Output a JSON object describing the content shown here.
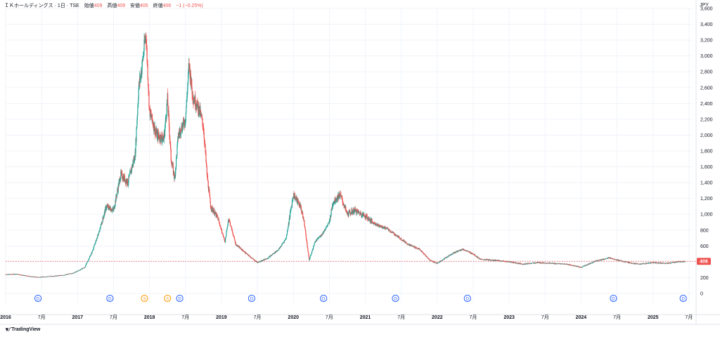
{
  "header": {
    "symbol": "ＩＫホールディングス",
    "interval": "1日",
    "exchange": "TSE",
    "open_label": "始値",
    "open": "409",
    "high_label": "高値",
    "high": "409",
    "low_label": "安値",
    "low": "405",
    "close_label": "終値",
    "close": "406",
    "change": "−1 (−0.25%)"
  },
  "currency": "JPY",
  "footer": {
    "brand": "TradingView",
    "icon": "tradingview-logo-icon"
  },
  "colors": {
    "up": "#26a69a",
    "down": "#ef5350",
    "price_line": "#ef5350",
    "marker_dividend": "#2962ff",
    "marker_split": "#ff9800",
    "grid": "#f0f3fa"
  },
  "chart_data": {
    "type": "candlestick",
    "ylim": [
      0,
      3600
    ],
    "y_ticks": [
      "0",
      "200",
      "400",
      "600",
      "800",
      "1,000",
      "1,200",
      "1,400",
      "1,600",
      "1,800",
      "2,000",
      "2,200",
      "2,400",
      "2,600",
      "2,800",
      "3,000",
      "3,200",
      "3,400",
      "3,600"
    ],
    "y_tick_values": [
      0,
      200,
      400,
      600,
      800,
      1000,
      1200,
      1400,
      1600,
      1800,
      2000,
      2200,
      2400,
      2600,
      2800,
      3000,
      3200,
      3400,
      3600
    ],
    "x_range": [
      2016.0,
      2025.55
    ],
    "x_ticks": [
      {
        "label": "2016",
        "x": 2016.0,
        "bold": true
      },
      {
        "label": "7月",
        "x": 2016.5,
        "bold": false
      },
      {
        "label": "2017",
        "x": 2017.0,
        "bold": true
      },
      {
        "label": "7月",
        "x": 2017.5,
        "bold": false
      },
      {
        "label": "2018",
        "x": 2018.0,
        "bold": true
      },
      {
        "label": "7月",
        "x": 2018.5,
        "bold": false
      },
      {
        "label": "2019",
        "x": 2019.0,
        "bold": true
      },
      {
        "label": "7月",
        "x": 2019.5,
        "bold": false
      },
      {
        "label": "2020",
        "x": 2020.0,
        "bold": true
      },
      {
        "label": "7月",
        "x": 2020.5,
        "bold": false
      },
      {
        "label": "2021",
        "x": 2021.0,
        "bold": true
      },
      {
        "label": "7月",
        "x": 2021.5,
        "bold": false
      },
      {
        "label": "2022",
        "x": 2022.0,
        "bold": true
      },
      {
        "label": "7月",
        "x": 2022.5,
        "bold": false
      },
      {
        "label": "2023",
        "x": 2023.0,
        "bold": true
      },
      {
        "label": "7月",
        "x": 2023.5,
        "bold": false
      },
      {
        "label": "2024",
        "x": 2024.0,
        "bold": true
      },
      {
        "label": "7月",
        "x": 2024.5,
        "bold": false
      },
      {
        "label": "2025",
        "x": 2025.0,
        "bold": true
      },
      {
        "label": "7月",
        "x": 2025.5,
        "bold": false
      }
    ],
    "last_price": 406,
    "last_price_label": "406",
    "price_path": [
      [
        2016.0,
        240
      ],
      [
        2016.15,
        245
      ],
      [
        2016.3,
        220
      ],
      [
        2016.45,
        205
      ],
      [
        2016.6,
        215
      ],
      [
        2016.8,
        230
      ],
      [
        2016.95,
        260
      ],
      [
        2017.1,
        330
      ],
      [
        2017.2,
        520
      ],
      [
        2017.3,
        780
      ],
      [
        2017.4,
        1100
      ],
      [
        2017.5,
        1050
      ],
      [
        2017.6,
        1500
      ],
      [
        2017.7,
        1400
      ],
      [
        2017.8,
        1750
      ],
      [
        2017.85,
        2600
      ],
      [
        2017.9,
        2900
      ],
      [
        2017.95,
        3300
      ],
      [
        2018.0,
        2300
      ],
      [
        2018.1,
        2000
      ],
      [
        2018.2,
        1950
      ],
      [
        2018.25,
        2450
      ],
      [
        2018.3,
        1700
      ],
      [
        2018.35,
        1450
      ],
      [
        2018.4,
        2000
      ],
      [
        2018.5,
        2200
      ],
      [
        2018.55,
        2900
      ],
      [
        2018.6,
        2500
      ],
      [
        2018.7,
        2300
      ],
      [
        2018.75,
        2100
      ],
      [
        2018.8,
        1500
      ],
      [
        2018.85,
        1100
      ],
      [
        2018.95,
        950
      ],
      [
        2019.05,
        650
      ],
      [
        2019.1,
        950
      ],
      [
        2019.2,
        620
      ],
      [
        2019.35,
        500
      ],
      [
        2019.5,
        390
      ],
      [
        2019.65,
        450
      ],
      [
        2019.8,
        560
      ],
      [
        2019.9,
        700
      ],
      [
        2020.0,
        1250
      ],
      [
        2020.1,
        1100
      ],
      [
        2020.15,
        900
      ],
      [
        2020.22,
        420
      ],
      [
        2020.3,
        650
      ],
      [
        2020.4,
        750
      ],
      [
        2020.5,
        900
      ],
      [
        2020.55,
        1150
      ],
      [
        2020.65,
        1250
      ],
      [
        2020.75,
        1000
      ],
      [
        2020.85,
        1050
      ],
      [
        2021.0,
        980
      ],
      [
        2021.1,
        900
      ],
      [
        2021.2,
        850
      ],
      [
        2021.3,
        820
      ],
      [
        2021.45,
        720
      ],
      [
        2021.6,
        620
      ],
      [
        2021.75,
        560
      ],
      [
        2021.9,
        420
      ],
      [
        2022.0,
        380
      ],
      [
        2022.2,
        500
      ],
      [
        2022.35,
        560
      ],
      [
        2022.5,
        500
      ],
      [
        2022.6,
        430
      ],
      [
        2022.8,
        420
      ],
      [
        2023.0,
        400
      ],
      [
        2023.2,
        370
      ],
      [
        2023.4,
        390
      ],
      [
        2023.6,
        380
      ],
      [
        2023.8,
        370
      ],
      [
        2024.0,
        330
      ],
      [
        2024.2,
        410
      ],
      [
        2024.4,
        450
      ],
      [
        2024.6,
        400
      ],
      [
        2024.8,
        370
      ],
      [
        2025.0,
        390
      ],
      [
        2025.2,
        380
      ],
      [
        2025.35,
        400
      ],
      [
        2025.45,
        406
      ]
    ],
    "events": [
      {
        "label": "D",
        "type": "dividend",
        "x": 2016.45
      },
      {
        "label": "D",
        "type": "dividend",
        "x": 2017.45
      },
      {
        "label": "S",
        "type": "split",
        "x": 2017.93
      },
      {
        "label": "S",
        "type": "split",
        "x": 2018.25
      },
      {
        "label": "D",
        "type": "dividend",
        "x": 2018.42
      },
      {
        "label": "D",
        "type": "dividend",
        "x": 2019.42
      },
      {
        "label": "D",
        "type": "dividend",
        "x": 2020.42
      },
      {
        "label": "D",
        "type": "dividend",
        "x": 2021.42
      },
      {
        "label": "D",
        "type": "dividend",
        "x": 2022.42
      },
      {
        "label": "D",
        "type": "dividend",
        "x": 2024.45
      },
      {
        "label": "D",
        "type": "dividend",
        "x": 2025.42
      }
    ]
  }
}
